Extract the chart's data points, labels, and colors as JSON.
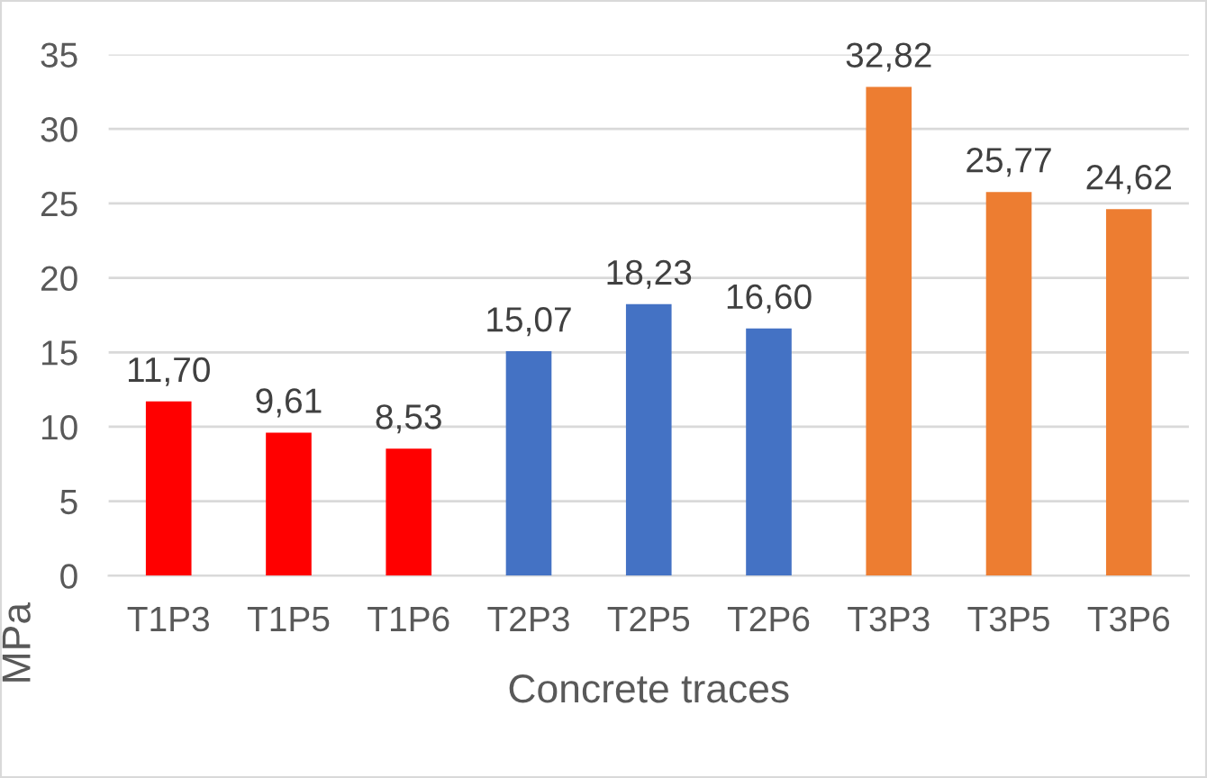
{
  "chart_data": {
    "type": "bar",
    "xlabel": "Concrete traces",
    "ylabel": "MPa",
    "categories": [
      "T1P3",
      "T1P5",
      "T1P6",
      "T2P3",
      "T2P5",
      "T2P6",
      "T3P3",
      "T3P5",
      "T3P6"
    ],
    "values": [
      11.7,
      9.61,
      8.53,
      15.07,
      18.23,
      16.6,
      32.82,
      25.77,
      24.62
    ],
    "colors": [
      "#ff0000",
      "#ff0000",
      "#ff0000",
      "#4472c4",
      "#4472c4",
      "#4472c4",
      "#ed7d31",
      "#ed7d31",
      "#ed7d31"
    ],
    "value_labels": [
      "11,70",
      "9,61",
      "8,53",
      "15,07",
      "18,23",
      "16,60",
      "32,82",
      "25,77",
      "24,62"
    ],
    "ylim": [
      0,
      35
    ],
    "yticks": [
      0,
      5,
      10,
      15,
      20,
      25,
      30,
      35
    ],
    "grid": "y",
    "legend": false
  }
}
